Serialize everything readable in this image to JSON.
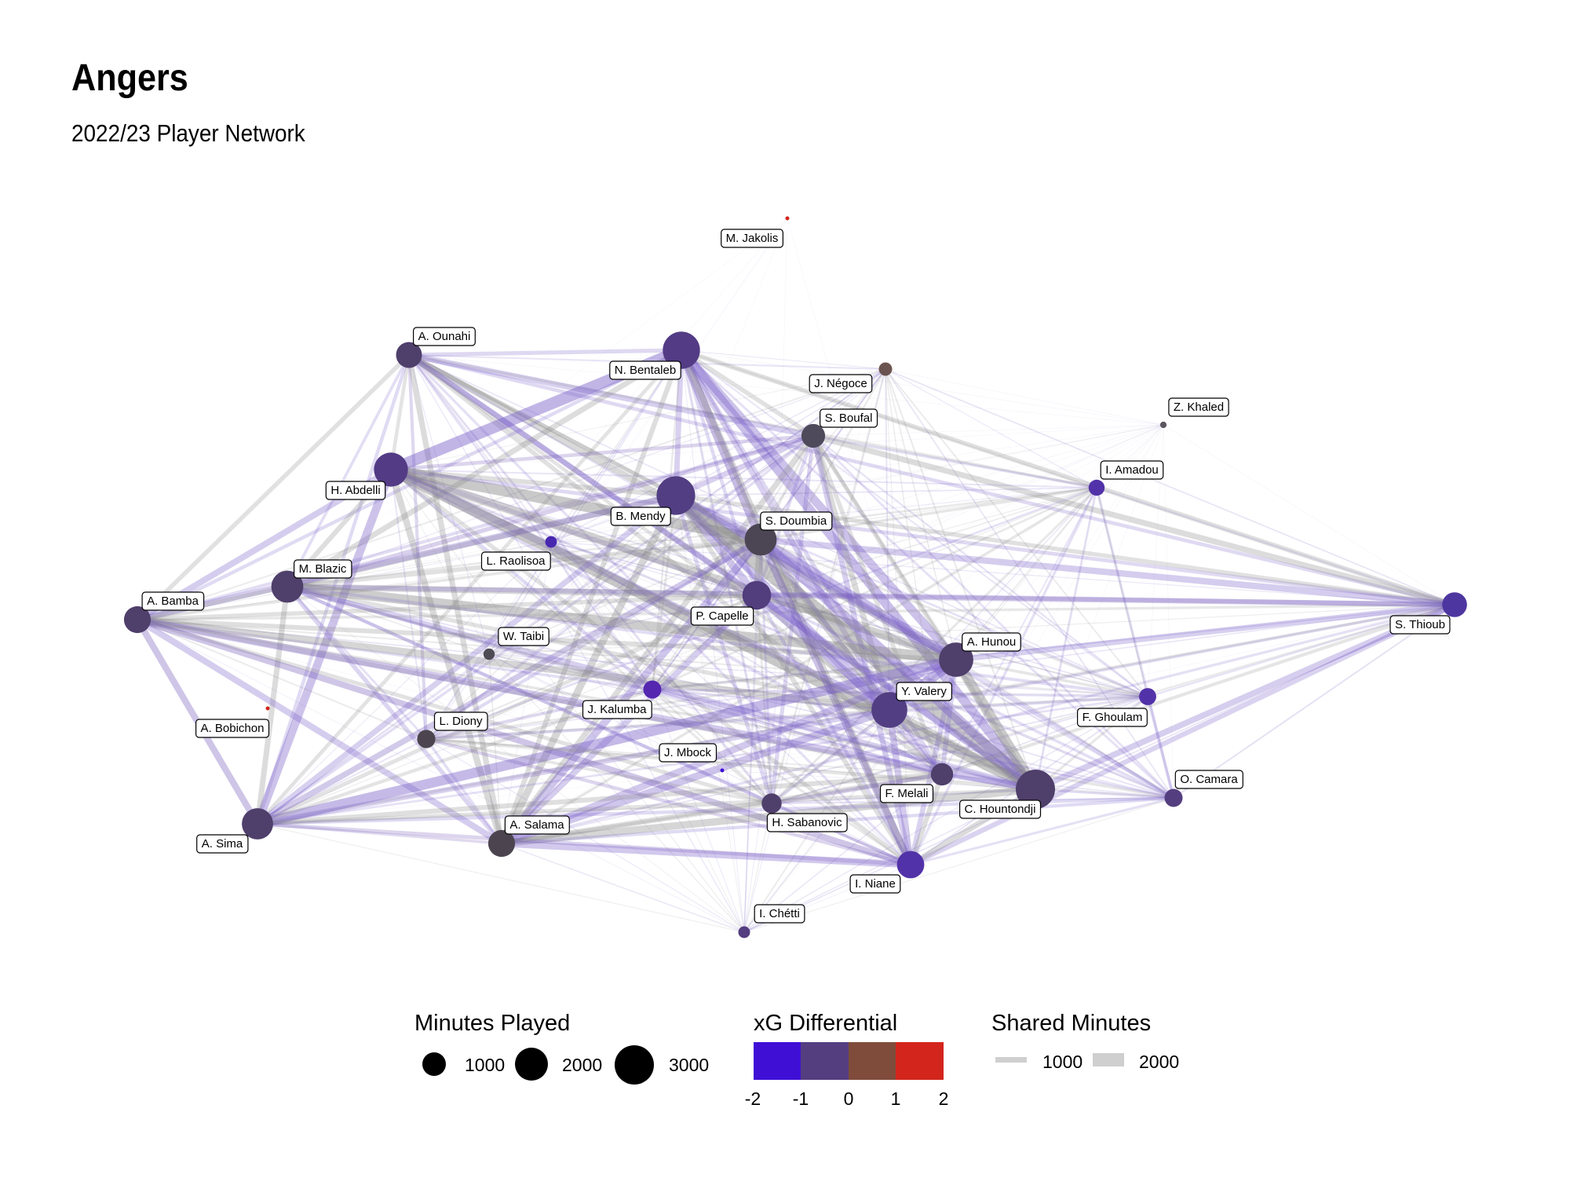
{
  "header": {
    "title": "Angers",
    "subtitle": "2022/23 Player Network"
  },
  "legend": {
    "minutes": {
      "title": "Minutes Played",
      "labels": [
        "1000",
        "2000",
        "3000"
      ],
      "values": [
        1000,
        2000,
        3000
      ]
    },
    "xg": {
      "title": "xG Differential",
      "ticks": [
        "-2",
        "-1",
        "0",
        "1",
        "2"
      ],
      "colors": [
        "#3f0fd6",
        "#553e80",
        "#7f4c3c",
        "#d3251c"
      ]
    },
    "shared": {
      "title": "Shared Minutes",
      "labels": [
        "1000",
        "2000"
      ],
      "values": [
        1000,
        2000
      ]
    }
  },
  "network": {
    "nodes": [
      {
        "name": "M. Jakolis",
        "minutes": 20,
        "color": "#d3251c"
      },
      {
        "name": "A. Ounahi",
        "minutes": 1300,
        "color": "#4f3f6b"
      },
      {
        "name": "N. Bentaleb",
        "minutes": 2700,
        "color": "#533b85"
      },
      {
        "name": "J. Négoce",
        "minutes": 350,
        "color": "#6b544f"
      },
      {
        "name": "Z. Khaled",
        "minutes": 80,
        "color": "#5c5560"
      },
      {
        "name": "S. Boufal",
        "minutes": 1100,
        "color": "#4e4a5c"
      },
      {
        "name": "I. Amadou",
        "minutes": 500,
        "color": "#5232a8"
      },
      {
        "name": "H. Abdelli",
        "minutes": 2250,
        "color": "#533b85"
      },
      {
        "name": "B. Mendy",
        "minutes": 2900,
        "color": "#523e82"
      },
      {
        "name": "L. Raolisoa",
        "minutes": 260,
        "color": "#4827b0"
      },
      {
        "name": "S. Doumbia",
        "minutes": 2000,
        "color": "#4b4554"
      },
      {
        "name": "M. Blazic",
        "minutes": 2000,
        "color": "#4f3f6b"
      },
      {
        "name": "A. Bamba",
        "minutes": 1400,
        "color": "#4f3f6b"
      },
      {
        "name": "P. Capelle",
        "minutes": 1600,
        "color": "#523d7d"
      },
      {
        "name": "S. Thioub",
        "minutes": 1200,
        "color": "#4e36a0"
      },
      {
        "name": "W. Taibi",
        "minutes": 250,
        "color": "#4f4b55"
      },
      {
        "name": "A. Hunou",
        "minutes": 2300,
        "color": "#4f3f6b"
      },
      {
        "name": "J. Kalumba",
        "minutes": 640,
        "color": "#5526b0"
      },
      {
        "name": "Y. Valery",
        "minutes": 2500,
        "color": "#523e82"
      },
      {
        "name": "F. Ghoulam",
        "minutes": 570,
        "color": "#5232a8"
      },
      {
        "name": "A. Bobichon",
        "minutes": 10,
        "color": "#d3251c"
      },
      {
        "name": "L. Diony",
        "minutes": 650,
        "color": "#4c4550"
      },
      {
        "name": "J. Mbock",
        "minutes": 30,
        "color": "#3f0fd6"
      },
      {
        "name": "F. Melali",
        "minutes": 970,
        "color": "#4f3f6b"
      },
      {
        "name": "C. Hountondji",
        "minutes": 3000,
        "color": "#4f3f6b"
      },
      {
        "name": "O. Camara",
        "minutes": 640,
        "color": "#553e80"
      },
      {
        "name": "A. Sima",
        "minutes": 1900,
        "color": "#4f3f6b"
      },
      {
        "name": "A. Salama",
        "minutes": 1400,
        "color": "#4c4550"
      },
      {
        "name": "H. Sabanovic",
        "minutes": 780,
        "color": "#4f3f6b"
      },
      {
        "name": "I. Niane",
        "minutes": 1450,
        "color": "#5232a8"
      },
      {
        "name": "I. Chétti",
        "minutes": 270,
        "color": "#553e80"
      }
    ]
  }
}
